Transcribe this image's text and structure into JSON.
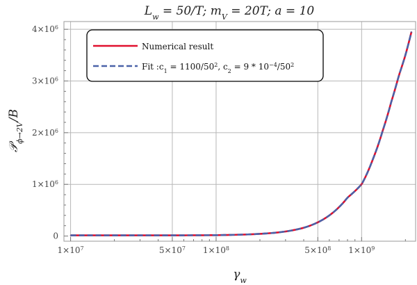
{
  "chart_data": {
    "type": "line",
    "title": "L_w = 50/T; m_V = 20T; a = 10",
    "xlabel": "γ_w",
    "ylabel": "𝒫_{ϕ→2V}/B",
    "x_scale": "log",
    "xlim": [
      9000000,
      2350000000
    ],
    "ylim": [
      -100000,
      4150000
    ],
    "x_ticks": [
      {
        "value": 10000000,
        "label": "1×10^7"
      },
      {
        "value": 50000000,
        "label": "5×10^7"
      },
      {
        "value": 100000000,
        "label": "1×10^8"
      },
      {
        "value": 500000000,
        "label": "5×10^8"
      },
      {
        "value": 1000000000,
        "label": "1×10^9"
      }
    ],
    "x_gridlines": [
      10000000,
      50000000,
      100000000,
      500000000,
      1000000000
    ],
    "y_ticks": [
      {
        "value": 0,
        "label": "0"
      },
      {
        "value": 1000000,
        "label": "1×10^6"
      },
      {
        "value": 2000000,
        "label": "2×10^6"
      },
      {
        "value": 3000000,
        "label": "3×10^6"
      },
      {
        "value": 4000000,
        "label": "4×10^6"
      }
    ],
    "grid": true,
    "legend_position": "top-left",
    "series": [
      {
        "name": "Numerical result",
        "color": "#e0102e",
        "style": "solid",
        "x": [
          10000000,
          30000000,
          60000000,
          100000000,
          150000000,
          200000000,
          250000000,
          300000000,
          400000000,
          500000000,
          600000000,
          700000000,
          800000000,
          1000000000,
          1200000000,
          1400000000,
          1600000000,
          1800000000,
          2000000000,
          2200000000
        ],
        "y": [
          13000,
          13300,
          14000,
          17000,
          27000,
          42000,
          62000,
          88000,
          160000,
          265000,
          400000,
          560000,
          745000,
          1000000,
          1500000,
          2050000,
          2600000,
          3100000,
          3500000,
          3950000
        ]
      },
      {
        "name": "Fit :c₁ = 1100/50², c₂ = 9 * 10⁻⁴/50²",
        "color": "#4a62a8",
        "style": "dashed",
        "x": [
          10000000,
          30000000,
          60000000,
          100000000,
          150000000,
          200000000,
          250000000,
          300000000,
          400000000,
          500000000,
          600000000,
          700000000,
          800000000,
          1000000000,
          1200000000,
          1400000000,
          1600000000,
          1800000000,
          2000000000,
          2200000000
        ],
        "y": [
          13000,
          13300,
          14000,
          17000,
          27000,
          42000,
          62000,
          88000,
          160000,
          265000,
          400000,
          560000,
          745000,
          1000000,
          1500000,
          2050000,
          2600000,
          3100000,
          3500000,
          3950000
        ]
      }
    ]
  }
}
